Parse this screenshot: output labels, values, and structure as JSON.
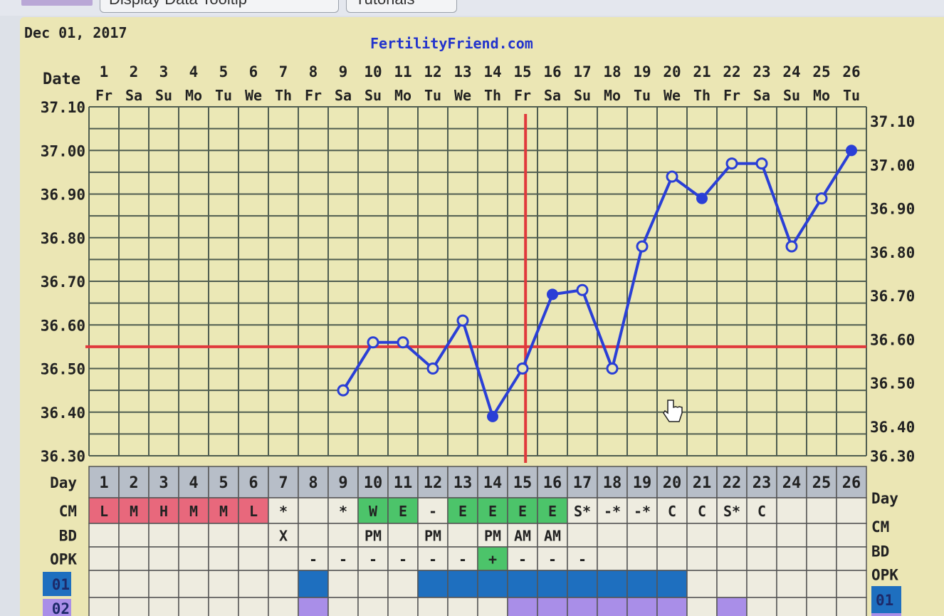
{
  "toolbar": {
    "buttons": [
      "Display Data Tooltip",
      "Tutorials"
    ]
  },
  "chart_header": {
    "start_date": "Dec 01, 2017",
    "site": "FertilityFriend.com",
    "date_label": "Date"
  },
  "colors": {
    "background": "#ebe6b4",
    "grid": "#4f5d50",
    "temp_line": "#2a3fd6",
    "coverline": "#e0393c",
    "ovulation_line": "#e0393c",
    "day_row": "#b7bec8",
    "cm_menstrual": "#e8687c",
    "cm_fertile": "#4cc46a",
    "opk_positive": "#4cc46a",
    "row01": "#1e6fbf",
    "row02": "#a98ee8"
  },
  "chart_data": {
    "type": "line",
    "title": "",
    "xlabel": "Date",
    "ylabel": "",
    "ylim": [
      36.3,
      37.1
    ],
    "yticks": [
      "37.10",
      "37.00",
      "36.90",
      "36.80",
      "36.70",
      "36.60",
      "36.50",
      "36.40",
      "36.30"
    ],
    "grid": true,
    "dates": [
      "1",
      "2",
      "3",
      "4",
      "5",
      "6",
      "7",
      "8",
      "9",
      "10",
      "11",
      "12",
      "13",
      "14",
      "15",
      "16",
      "17",
      "18",
      "19",
      "20",
      "21",
      "22",
      "23",
      "24",
      "25",
      "26"
    ],
    "weekdays": [
      "Fr",
      "Sa",
      "Su",
      "Mo",
      "Tu",
      "We",
      "Th",
      "Fr",
      "Sa",
      "Su",
      "Mo",
      "Tu",
      "We",
      "Th",
      "Fr",
      "Sa",
      "Su",
      "Mo",
      "Tu",
      "We",
      "Th",
      "Fr",
      "Sa",
      "Su",
      "Mo",
      "Tu"
    ],
    "cycle_days": [
      "1",
      "2",
      "3",
      "4",
      "5",
      "6",
      "7",
      "8",
      "9",
      "10",
      "11",
      "12",
      "13",
      "14",
      "15",
      "16",
      "17",
      "18",
      "19",
      "20",
      "21",
      "22",
      "23",
      "24",
      "25",
      "26"
    ],
    "temps": [
      {
        "day": 9,
        "value": 36.45,
        "filled": false
      },
      {
        "day": 10,
        "value": 36.56,
        "filled": false
      },
      {
        "day": 11,
        "value": 36.56,
        "filled": false
      },
      {
        "day": 12,
        "value": 36.5,
        "filled": false
      },
      {
        "day": 13,
        "value": 36.61,
        "filled": false
      },
      {
        "day": 14,
        "value": 36.39,
        "filled": true
      },
      {
        "day": 15,
        "value": 36.5,
        "filled": false
      },
      {
        "day": 16,
        "value": 36.67,
        "filled": true
      },
      {
        "day": 17,
        "value": 36.68,
        "filled": false
      },
      {
        "day": 18,
        "value": 36.5,
        "filled": false
      },
      {
        "day": 19,
        "value": 36.78,
        "filled": false
      },
      {
        "day": 20,
        "value": 36.94,
        "filled": false
      },
      {
        "day": 21,
        "value": 36.89,
        "filled": true
      },
      {
        "day": 22,
        "value": 36.97,
        "filled": false
      },
      {
        "day": 23,
        "value": 36.97,
        "filled": false
      },
      {
        "day": 24,
        "value": 36.78,
        "filled": false
      },
      {
        "day": 25,
        "value": 36.89,
        "filled": false
      },
      {
        "day": 26,
        "value": 37.0,
        "filled": true
      }
    ],
    "coverline": 36.55,
    "ovulation_day": 15
  },
  "rows": {
    "day_label": "Day",
    "cm_label": "CM",
    "bd_label": "BD",
    "opk_label": "OPK",
    "r01_label": "01",
    "r02_label": "02",
    "cm": [
      "L",
      "M",
      "H",
      "M",
      "M",
      "L",
      "*",
      "",
      "*",
      "W",
      "E",
      "-",
      "E",
      "E",
      "E",
      "E",
      "S*",
      "-*",
      "-*",
      "C",
      "C",
      "S*",
      "C",
      "",
      "",
      ""
    ],
    "cm_style": [
      "m",
      "m",
      "m",
      "m",
      "m",
      "m",
      "",
      "",
      "",
      "f",
      "f",
      "",
      "f",
      "f",
      "f",
      "f",
      "",
      "",
      "",
      "",
      "",
      "",
      "",
      "",
      "",
      ""
    ],
    "bd": [
      "",
      "",
      "",
      "",
      "",
      "",
      "X",
      "",
      "",
      "PM",
      "",
      "PM",
      "",
      "PM",
      "AM",
      "AM",
      "",
      "",
      "",
      "",
      "",
      "",
      "",
      "",
      "",
      ""
    ],
    "opk": [
      "",
      "",
      "",
      "",
      "",
      "",
      "",
      "-",
      "-",
      "-",
      "-",
      "-",
      "-",
      "+",
      "-",
      "-",
      "-",
      "",
      "",
      "",
      "",
      "",
      "",
      "",
      "",
      ""
    ],
    "r01": [
      0,
      0,
      0,
      0,
      0,
      0,
      0,
      1,
      0,
      0,
      0,
      1,
      1,
      1,
      1,
      1,
      1,
      1,
      1,
      1,
      0,
      0,
      0,
      0,
      0,
      0
    ],
    "r02": [
      0,
      0,
      0,
      0,
      0,
      0,
      0,
      1,
      0,
      0,
      0,
      0,
      0,
      0,
      1,
      1,
      1,
      1,
      1,
      1,
      0,
      1,
      0,
      0,
      0,
      0
    ]
  }
}
